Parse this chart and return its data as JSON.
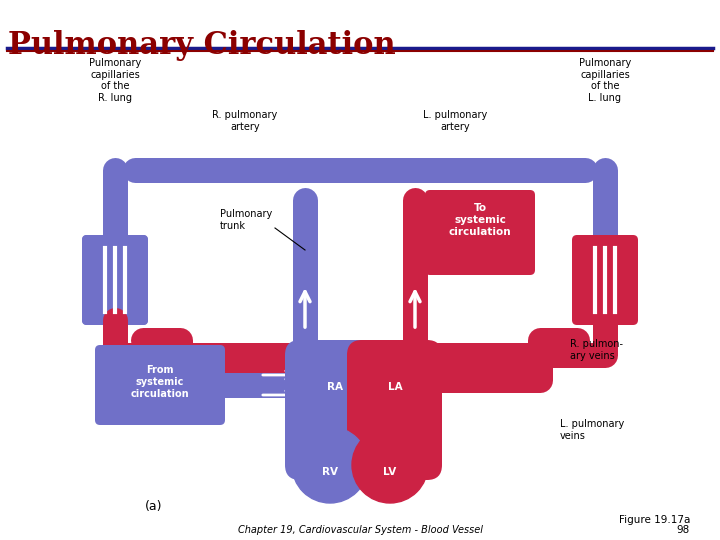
{
  "title": "Pulmonary Circulation",
  "title_color": "#8B0000",
  "title_fontsize": 22,
  "bg_color": "#FFFFFF",
  "blue_color": "#7070C8",
  "red_color": "#CC2244",
  "dark_red": "#AA1133",
  "footer_text": "Chapter 19, Cardiovascular System - Blood Vessel",
  "figure_label": "Figure 19.17a",
  "figure_num": "98",
  "panel_label": "(a)",
  "labels": {
    "pulm_cap_R": "Pulmonary\ncapillaries\nof the\nR. lung",
    "pulm_cap_L": "Pulmonary\ncapillaries\nof the\nL. lung",
    "R_pulm_artery": "R. pulmonary\nartery",
    "L_pulm_artery": "L. pulmonary\nartery",
    "pulm_trunk": "Pulmonary\ntrunk",
    "to_systemic": "To\nsystemic\ncirculation",
    "from_systemic": "From\nsystemic\ncirculation",
    "R_pulm_veins": "R. pulmon-\nary veins",
    "L_pulm_veins": "L. pulmonary\nveins",
    "RA": "RA",
    "LA": "LA",
    "RV": "RV",
    "LV": "LV"
  }
}
